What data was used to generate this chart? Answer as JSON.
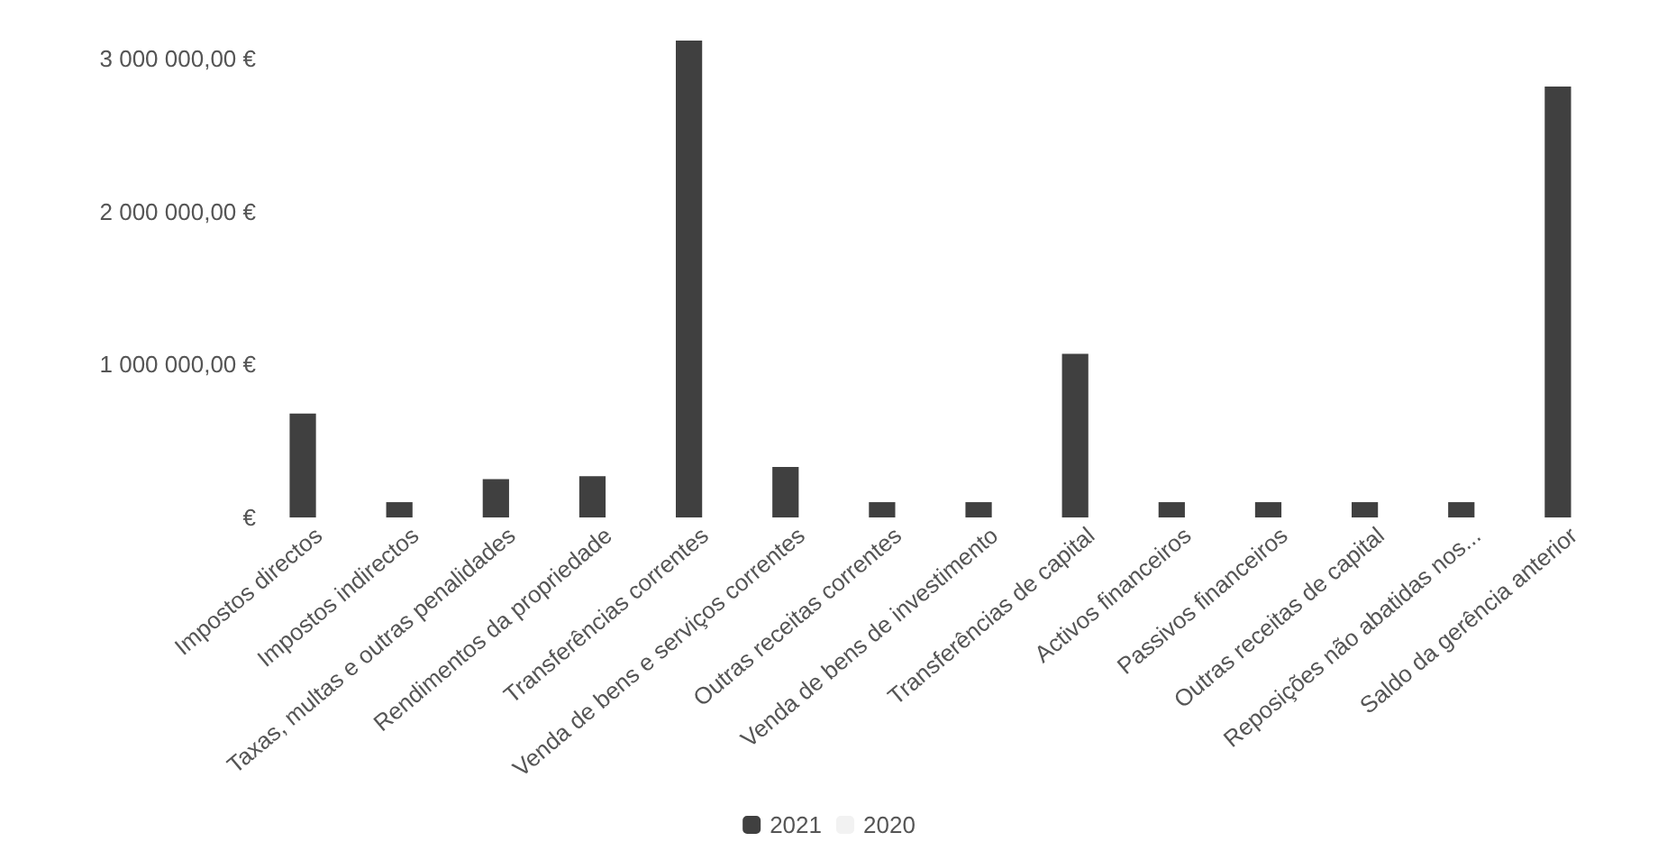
{
  "chart_data": {
    "type": "bar",
    "categories": [
      "Impostos directos",
      "Impostos indirectos",
      "Taxas, multas e outras penalidades",
      "Rendimentos da propriedade",
      "Transferências correntes",
      "Venda de bens e serviços correntes",
      "Outras receitas correntes",
      "Venda de bens de investimento",
      "Transferências de capital",
      "Activos financeiros",
      "Passivos financeiros",
      "Outras receitas de capital",
      "Reposições não abatidas nos...",
      "Saldo da gerência anterior"
    ],
    "series": [
      {
        "name": "2021",
        "color": "#404040",
        "values": [
          680000,
          100000,
          250000,
          270000,
          3120000,
          330000,
          100000,
          100000,
          1070000,
          100000,
          100000,
          100000,
          100000,
          2820000
        ]
      },
      {
        "name": "2020",
        "color": "#f2f2f2",
        "values": [
          null,
          null,
          null,
          null,
          null,
          null,
          null,
          null,
          null,
          null,
          null,
          null,
          null,
          null
        ]
      }
    ],
    "ylim": [
      0,
      3150000
    ],
    "yticks": [
      {
        "value": 0,
        "label": "€"
      },
      {
        "value": 1000000,
        "label": "1 000 000,00 €"
      },
      {
        "value": 2000000,
        "label": "2 000 000,00 €"
      },
      {
        "value": 3000000,
        "label": "3 000 000,00 €"
      }
    ],
    "grid": false,
    "legend": "bottom"
  }
}
